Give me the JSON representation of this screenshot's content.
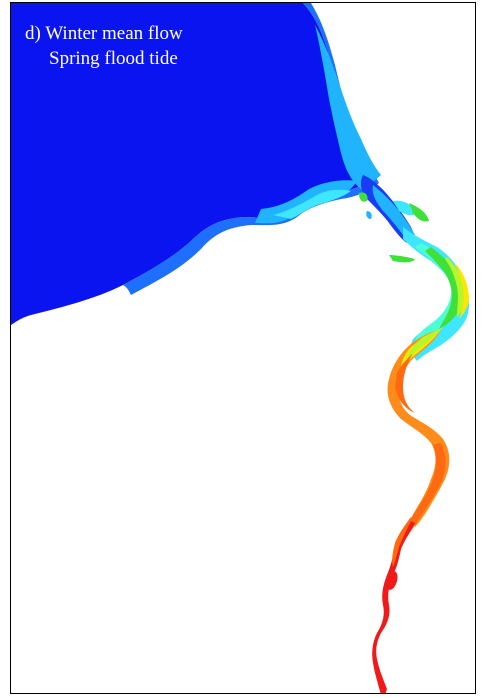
{
  "panel": {
    "label": "d)",
    "title_line1": "Winter mean flow",
    "title_line2": "Spring flood tide"
  },
  "colors": {
    "ocean": "#0a14f0",
    "blue": "#1a3cf5",
    "mid_blue": "#1f6fff",
    "light_blue": "#20b4ff",
    "cyan": "#3fe6ff",
    "aqua": "#4cffd6",
    "green": "#3fe03a",
    "yellow_green": "#b8f52a",
    "yellow": "#ffe600",
    "orange": "#ff8c1a",
    "dark_orange": "#ff6a10",
    "red": "#f01a1a",
    "frame": "#000000",
    "land": "#ffffff"
  }
}
